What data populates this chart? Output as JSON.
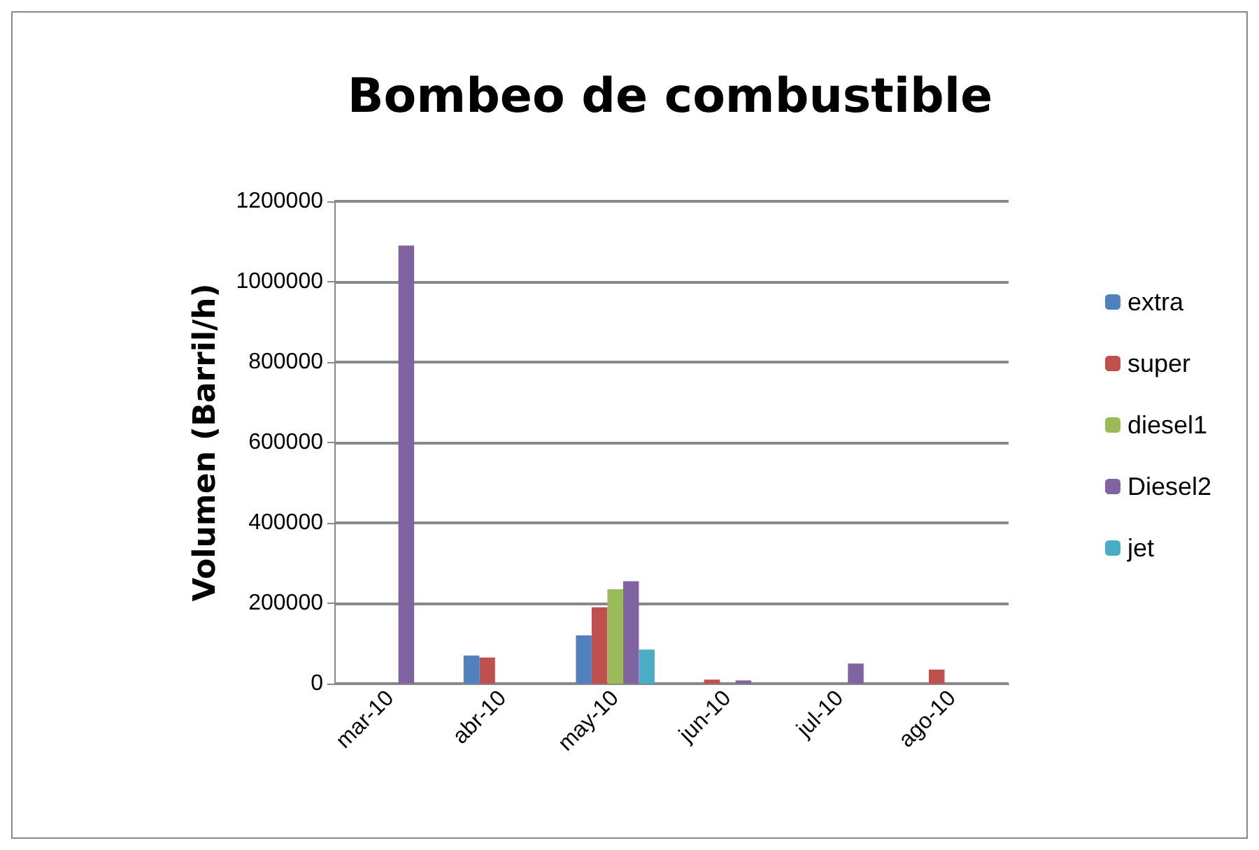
{
  "chart_data": {
    "type": "bar",
    "title": "Bombeo de combustible",
    "ylabel": "Volumen (Barril/h)",
    "categories": [
      "mar-10",
      "abr-10",
      "may-10",
      "jun-10",
      "jul-10",
      "ago-10"
    ],
    "series": [
      {
        "name": "extra",
        "color": "#4f81bd",
        "values": [
          0,
          70000,
          120000,
          0,
          0,
          0
        ]
      },
      {
        "name": "super",
        "color": "#c0504d",
        "values": [
          0,
          65000,
          190000,
          10000,
          0,
          35000
        ]
      },
      {
        "name": "diesel1",
        "color": "#9bbb59",
        "values": [
          0,
          0,
          235000,
          0,
          0,
          0
        ]
      },
      {
        "name": "Diesel2",
        "color": "#8064a2",
        "values": [
          1090000,
          0,
          255000,
          8000,
          50000,
          0
        ]
      },
      {
        "name": "jet",
        "color": "#4bacc6",
        "values": [
          0,
          0,
          85000,
          0,
          0,
          0
        ]
      }
    ],
    "ylim": [
      0,
      1200000
    ],
    "yticks": [
      0,
      200000,
      400000,
      600000,
      800000,
      1000000,
      1200000
    ],
    "grid": "y",
    "legend": "right"
  }
}
